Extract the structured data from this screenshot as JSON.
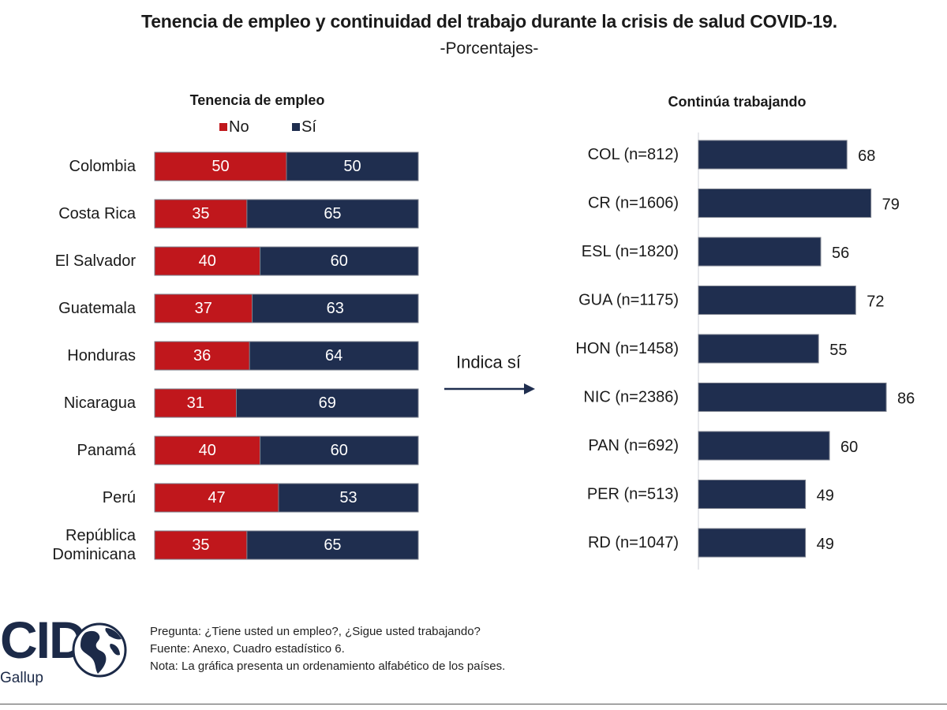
{
  "header": {
    "title": "Tenencia de empleo y continuidad del trabajo durante la crisis de salud COVID-19.",
    "subtitle": "-Porcentajes-"
  },
  "arrow_label": "Indica sí",
  "chart_data": [
    {
      "type": "bar",
      "orientation": "horizontal",
      "stacked": true,
      "title": "Tenencia de empleo",
      "legend_placement": "top",
      "xlim": [
        0,
        100
      ],
      "grid": false,
      "categories": [
        "Colombia",
        "Costa Rica",
        "El Salvador",
        "Guatemala",
        "Honduras",
        "Nicaragua",
        "Panamá",
        "Perú",
        "República Dominicana"
      ],
      "series": [
        {
          "name": "No",
          "color": "#c0171c",
          "values": [
            50,
            35,
            40,
            37,
            36,
            31,
            40,
            47,
            35
          ]
        },
        {
          "name": "Sí",
          "color": "#1f2e4f",
          "values": [
            50,
            65,
            60,
            63,
            64,
            69,
            60,
            53,
            65
          ]
        }
      ]
    },
    {
      "type": "bar",
      "orientation": "horizontal",
      "title": "Continúa trabajando",
      "xlim": [
        0,
        100
      ],
      "grid": false,
      "color": "#1f2e4f",
      "categories": [
        "COL (n=812)",
        "CR (n=1606)",
        "ESL (n=1820)",
        "GUA (n=1175)",
        "HON (n=1458)",
        "NIC (n=2386)",
        "PAN (n=692)",
        "PER (n=513)",
        "RD (n=1047)"
      ],
      "values": [
        68,
        79,
        56,
        72,
        55,
        86,
        60,
        49,
        49
      ]
    }
  ],
  "logo": {
    "text": "CID",
    "subtext": "Gallup",
    "icon": "globe-icon"
  },
  "notes": [
    "Pregunta: ¿Tiene usted un empleo?, ¿Sigue usted trabajando?",
    "Fuente: Anexo, Cuadro estadístico 6.",
    "Nota: La gráfica presenta un ordenamiento alfabético de los países."
  ]
}
